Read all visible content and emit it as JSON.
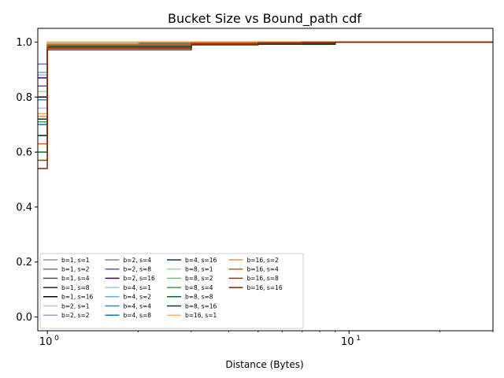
{
  "chart_data": {
    "type": "line",
    "title": "Bucket Size vs Bound_path cdf",
    "xlabel": "Distance (Bytes)",
    "ylabel": "",
    "xscale": "log",
    "xlim": [
      0.93,
      30
    ],
    "ylim": [
      -0.05,
      1.05
    ],
    "xticks": [
      {
        "value": 1,
        "label": "10",
        "exp": "0"
      },
      {
        "value": 10,
        "label": "10",
        "exp": "1"
      }
    ],
    "yticks": [
      {
        "value": 0.0,
        "label": "0.0"
      },
      {
        "value": 0.2,
        "label": "0.2"
      },
      {
        "value": 0.4,
        "label": "0.4"
      },
      {
        "value": 0.6,
        "label": "0.6"
      },
      {
        "value": 0.8,
        "label": "0.8"
      },
      {
        "value": 1.0,
        "label": "1.0"
      }
    ],
    "grid": false,
    "legend_position": "lower-left",
    "legend_columns": 4,
    "series": [
      {
        "name": "b=1, s=1",
        "color": "#969696",
        "x": [
          0.93,
          1,
          1,
          30
        ],
        "y": [
          0.92,
          0.92,
          1.0,
          1.0
        ]
      },
      {
        "name": "b=1, s=2",
        "color": "#737373",
        "x": [
          0.93,
          1,
          1,
          2,
          2,
          30
        ],
        "y": [
          0.88,
          0.88,
          0.998,
          0.998,
          1.0,
          1.0
        ]
      },
      {
        "name": "b=1, s=4",
        "color": "#525252",
        "x": [
          0.93,
          1,
          1,
          3,
          3,
          30
        ],
        "y": [
          0.8,
          0.8,
          0.995,
          0.995,
          1.0,
          1.0
        ]
      },
      {
        "name": "b=1, s=8",
        "color": "#252525",
        "x": [
          0.93,
          1,
          1,
          3,
          3,
          7,
          7,
          30
        ],
        "y": [
          0.72,
          0.72,
          0.99,
          0.99,
          0.997,
          0.997,
          1.0,
          1.0
        ]
      },
      {
        "name": "b=1, s=16",
        "color": "#000000",
        "x": [
          0.93,
          1,
          1,
          3,
          3,
          9,
          9,
          30
        ],
        "y": [
          0.8,
          0.8,
          0.985,
          0.985,
          0.995,
          0.995,
          1.0,
          1.0
        ]
      },
      {
        "name": "b=2, s=1",
        "color": "#bcbddc",
        "x": [
          0.93,
          1,
          1,
          30
        ],
        "y": [
          0.88,
          0.88,
          1.0,
          1.0
        ]
      },
      {
        "name": "b=2, s=2",
        "color": "#9e9ac8",
        "x": [
          0.93,
          1,
          1,
          2,
          2,
          30
        ],
        "y": [
          0.84,
          0.84,
          0.997,
          0.997,
          1.0,
          1.0
        ]
      },
      {
        "name": "b=2, s=4",
        "color": "#807dba",
        "x": [
          0.93,
          1,
          1,
          3,
          3,
          30
        ],
        "y": [
          0.92,
          0.92,
          0.993,
          0.993,
          1.0,
          1.0
        ]
      },
      {
        "name": "b=2, s=8",
        "color": "#6a51a3",
        "x": [
          0.93,
          1,
          1,
          3,
          3,
          7,
          7,
          30
        ],
        "y": [
          0.84,
          0.84,
          0.988,
          0.988,
          0.996,
          0.996,
          1.0,
          1.0
        ]
      },
      {
        "name": "b=2, s=16",
        "color": "#3f007d",
        "x": [
          0.93,
          1,
          1,
          3,
          3,
          9,
          9,
          30
        ],
        "y": [
          0.87,
          0.87,
          0.982,
          0.982,
          0.994,
          0.994,
          1.0,
          1.0
        ]
      },
      {
        "name": "b=4, s=1",
        "color": "#9ecae1",
        "x": [
          0.93,
          1,
          1,
          30
        ],
        "y": [
          0.76,
          0.76,
          1.0,
          1.0
        ]
      },
      {
        "name": "b=4, s=2",
        "color": "#6baed6",
        "x": [
          0.93,
          1,
          1,
          2,
          2,
          30
        ],
        "y": [
          0.89,
          0.89,
          0.996,
          0.996,
          1.0,
          1.0
        ]
      },
      {
        "name": "b=4, s=4",
        "color": "#3182bd",
        "x": [
          0.93,
          1,
          1,
          3,
          3,
          30
        ],
        "y": [
          0.79,
          0.79,
          0.992,
          0.992,
          1.0,
          1.0
        ]
      },
      {
        "name": "b=4, s=8",
        "color": "#2171b5",
        "x": [
          0.93,
          1,
          1,
          3,
          3,
          7,
          7,
          30
        ],
        "y": [
          0.7,
          0.7,
          0.986,
          0.986,
          0.996,
          0.996,
          1.0,
          1.0
        ]
      },
      {
        "name": "b=4, s=16",
        "color": "#08306b",
        "x": [
          0.93,
          1,
          1,
          3,
          3,
          9,
          9,
          30
        ],
        "y": [
          0.66,
          0.66,
          0.98,
          0.98,
          0.993,
          0.993,
          1.0,
          1.0
        ]
      },
      {
        "name": "b=8, s=1",
        "color": "#a1d99b",
        "x": [
          0.93,
          1,
          1,
          30
        ],
        "y": [
          0.82,
          0.82,
          1.0,
          1.0
        ]
      },
      {
        "name": "b=8, s=2",
        "color": "#74c476",
        "x": [
          0.93,
          1,
          1,
          2,
          2,
          30
        ],
        "y": [
          0.74,
          0.74,
          0.995,
          0.995,
          1.0,
          1.0
        ]
      },
      {
        "name": "b=8, s=4",
        "color": "#31a354",
        "x": [
          0.93,
          1,
          1,
          3,
          3,
          30
        ],
        "y": [
          0.71,
          0.71,
          0.99,
          0.99,
          1.0,
          1.0
        ]
      },
      {
        "name": "b=8, s=8",
        "color": "#006d2c",
        "x": [
          0.93,
          1,
          1,
          3,
          3,
          7,
          7,
          30
        ],
        "y": [
          0.6,
          0.6,
          0.984,
          0.984,
          0.995,
          0.995,
          1.0,
          1.0
        ]
      },
      {
        "name": "b=8, s=16",
        "color": "#00441b",
        "x": [
          0.93,
          1,
          1,
          3,
          3,
          9,
          9,
          30
        ],
        "y": [
          0.66,
          0.66,
          0.978,
          0.978,
          0.992,
          0.992,
          1.0,
          1.0
        ]
      },
      {
        "name": "b=16, s=1",
        "color": "#fdae6b",
        "x": [
          0.93,
          1,
          1,
          30
        ],
        "y": [
          0.74,
          0.74,
          1.0,
          1.0
        ]
      },
      {
        "name": "b=16, s=2",
        "color": "#fd8d3c",
        "x": [
          0.93,
          1,
          1,
          2,
          2,
          30
        ],
        "y": [
          0.73,
          0.73,
          0.994,
          0.994,
          1.0,
          1.0
        ]
      },
      {
        "name": "b=16, s=4",
        "color": "#e6550d",
        "x": [
          0.93,
          1,
          1,
          3,
          3,
          5,
          5,
          30
        ],
        "y": [
          0.63,
          0.63,
          0.99,
          0.99,
          0.997,
          0.997,
          1.0,
          1.0
        ]
      },
      {
        "name": "b=16, s=8",
        "color": "#a63603",
        "x": [
          0.93,
          1,
          1,
          3,
          3,
          7,
          7,
          30
        ],
        "y": [
          0.57,
          0.57,
          0.98,
          0.98,
          0.994,
          0.994,
          1.0,
          1.0
        ]
      },
      {
        "name": "b=16, s=16",
        "color": "#7f2704",
        "x": [
          0.93,
          1,
          1,
          3,
          3,
          5,
          5,
          9,
          9,
          30
        ],
        "y": [
          0.54,
          0.54,
          0.972,
          0.972,
          0.99,
          0.99,
          0.996,
          0.996,
          1.0,
          1.0
        ]
      }
    ]
  }
}
